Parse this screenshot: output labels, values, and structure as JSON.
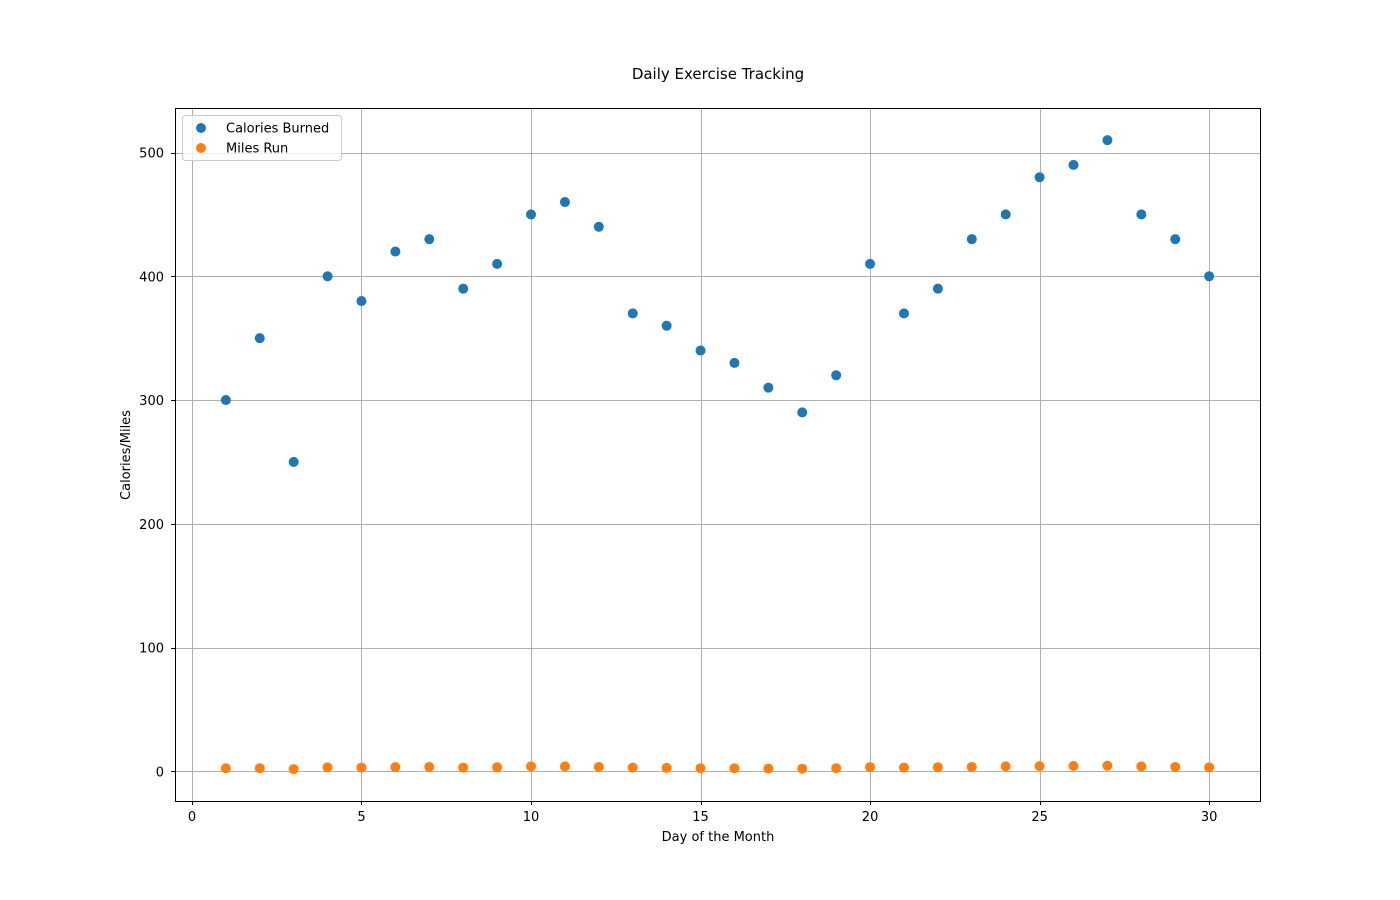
{
  "chart_data": {
    "type": "scatter",
    "title": "Daily Exercise Tracking",
    "xlabel": "Day of the Month",
    "ylabel": "Calories/Miles",
    "xlim": [
      -0.5,
      31.5
    ],
    "ylim": [
      -24,
      536
    ],
    "xticks": [
      0,
      5,
      10,
      15,
      20,
      25,
      30
    ],
    "yticks": [
      0,
      100,
      200,
      300,
      400,
      500
    ],
    "grid": true,
    "legend_position": "top-left",
    "x": [
      1,
      2,
      3,
      4,
      5,
      6,
      7,
      8,
      9,
      10,
      11,
      12,
      13,
      14,
      15,
      16,
      17,
      18,
      19,
      20,
      21,
      22,
      23,
      24,
      25,
      26,
      27,
      28,
      29,
      30
    ],
    "series": [
      {
        "name": "Calories Burned",
        "color": "#1f77b4",
        "values": [
          300,
          350,
          250,
          400,
          380,
          420,
          430,
          390,
          410,
          450,
          460,
          440,
          370,
          360,
          340,
          330,
          310,
          290,
          320,
          410,
          370,
          390,
          430,
          450,
          480,
          490,
          510,
          450,
          430,
          400
        ]
      },
      {
        "name": "Miles Run",
        "color": "#ff7f0e",
        "values": [
          2.5,
          2.5,
          1.8,
          3.2,
          3.0,
          3.4,
          3.5,
          3.0,
          3.3,
          4.0,
          4.0,
          3.5,
          3.0,
          2.8,
          2.5,
          2.4,
          2.2,
          2.1,
          2.5,
          3.4,
          3.0,
          3.3,
          3.5,
          4.0,
          4.2,
          4.3,
          4.5,
          4.0,
          3.5,
          3.2
        ]
      }
    ]
  }
}
